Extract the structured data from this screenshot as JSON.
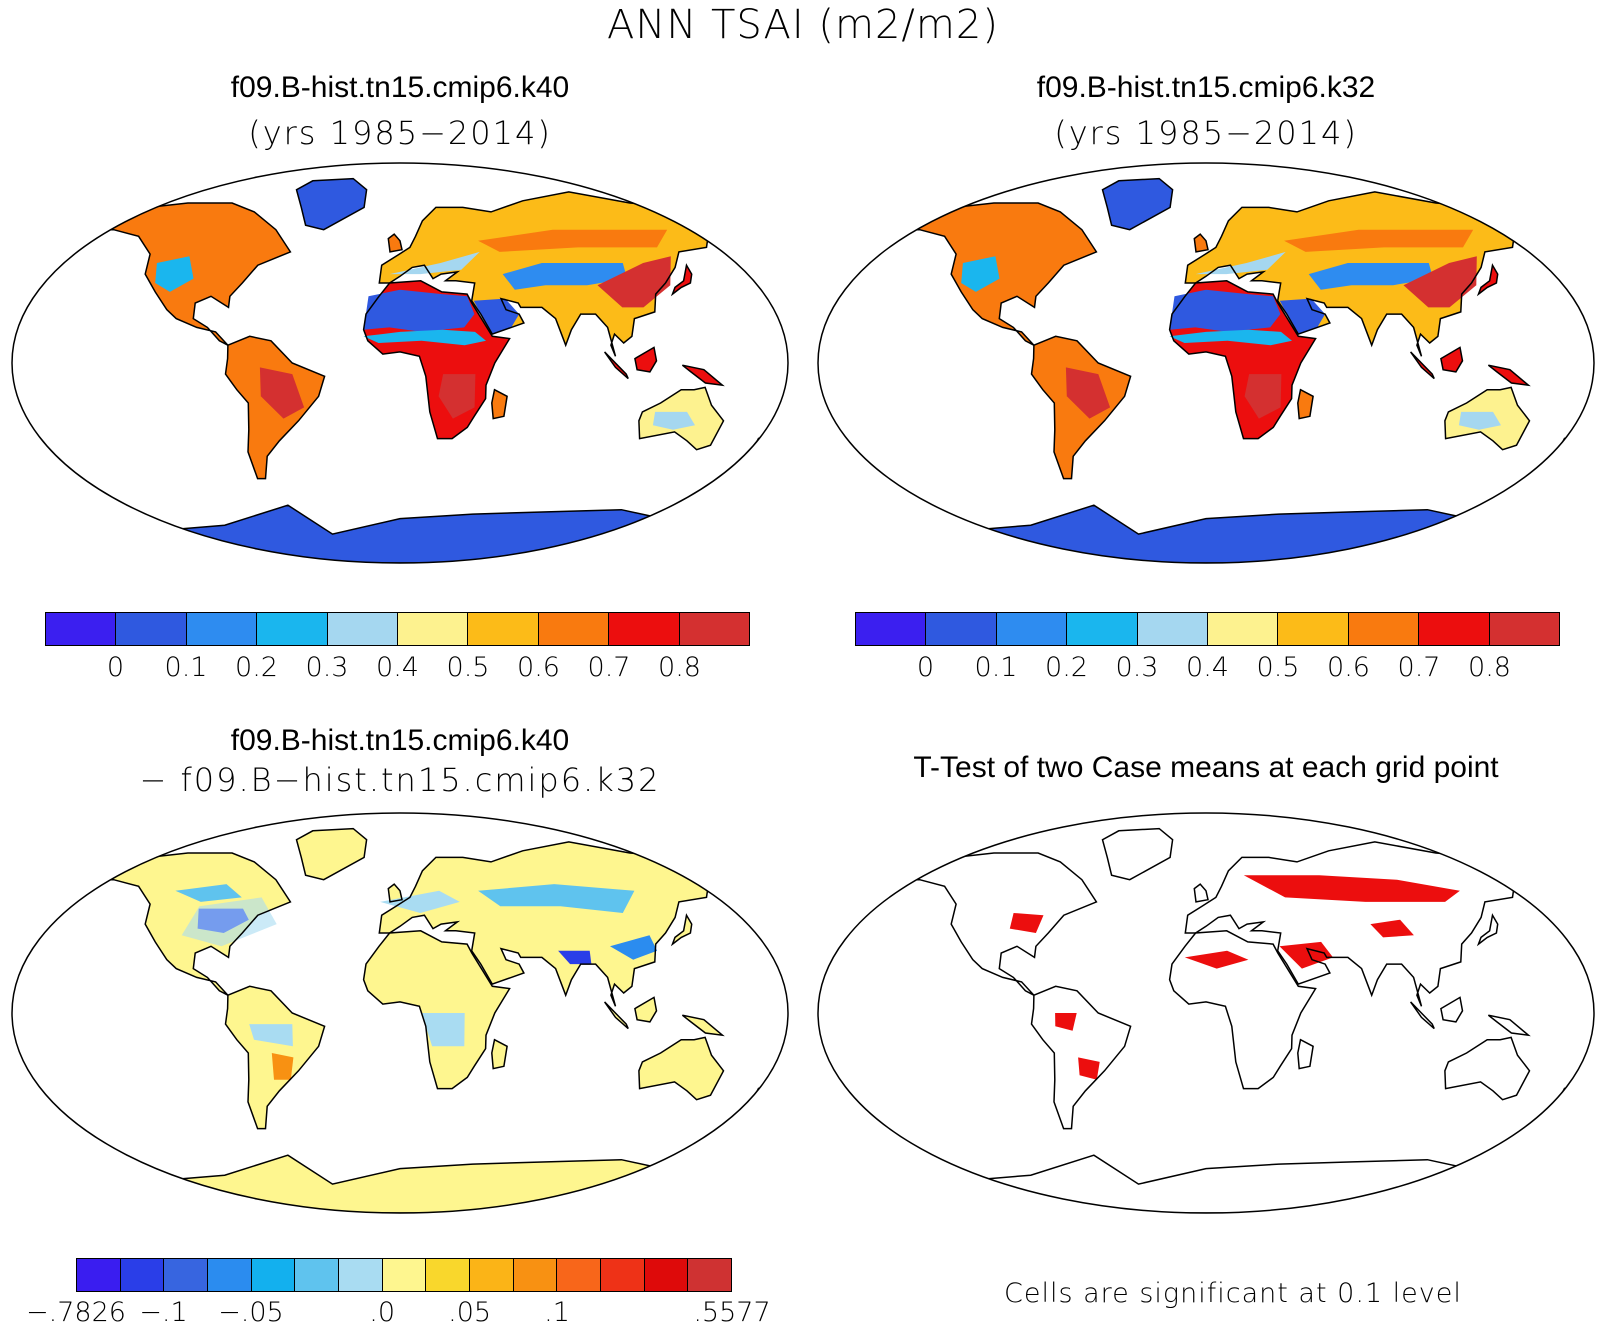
{
  "title": "ANN TSAI (m2/m2)",
  "panels": [
    {
      "title": "f09.B-hist.tn15.cmip6.k40",
      "subtitle": "(yrs 1985−2014)"
    },
    {
      "title": "f09.B-hist.tn15.cmip6.k32",
      "subtitle": "(yrs 1985−2014)"
    },
    {
      "title": "f09.B-hist.tn15.cmip6.k40",
      "subtitle": "− f09.B−hist.tn15.cmip6.k32"
    },
    {
      "title": "T-Test of two Case means at each grid point"
    }
  ],
  "colorbar_abs": {
    "colors": [
      "#3b1ff0",
      "#2f59e0",
      "#2e8cf0",
      "#1ab6ee",
      "#a5d7f0",
      "#fdf28f",
      "#fcbb18",
      "#f97a0f",
      "#ec0e0e",
      "#d43030"
    ],
    "labels": [
      "0",
      "0.1",
      "0.2",
      "0.3",
      "0.4",
      "0.5",
      "0.6",
      "0.7",
      "0.8"
    ]
  },
  "colorbar_diff": {
    "colors": [
      "#3a1df0",
      "#2a3ee8",
      "#3765e0",
      "#2b8cef",
      "#13b0ee",
      "#5fc3ee",
      "#a9dcf2",
      "#fef68f",
      "#f9d72c",
      "#fbb417",
      "#f89112",
      "#f8661a",
      "#ee3217",
      "#de0a0a",
      "#cf3232"
    ],
    "labels": [
      "−.7826",
      "−.1",
      "−.05",
      ".0",
      ".05",
      ".1",
      ".5577"
    ]
  },
  "significance_note": "Cells are significant at 0.1 level",
  "legend_colors": {
    "ocean": "#ffffff",
    "significant": "#ec0e0e",
    "coast": "#000000"
  }
}
